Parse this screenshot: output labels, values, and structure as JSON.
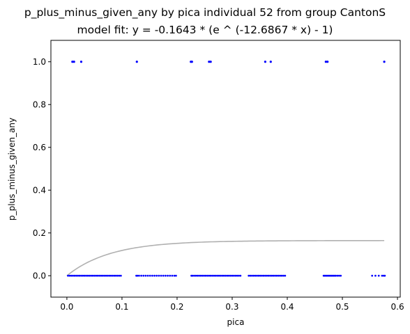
{
  "chart_data": {
    "type": "scatter",
    "title": "p_plus_minus_given_any by pica individual 52 from group CantonS",
    "subtitle": "model fit: y = -0.1643 * (e ^ (-12.6867 * x) - 1)",
    "xlabel": "pica",
    "ylabel": "p_plus_minus_given_any",
    "xlim": [
      -0.029,
      0.605
    ],
    "ylim": [
      -0.1,
      1.1
    ],
    "xticks": [
      0.0,
      0.1,
      0.2,
      0.3,
      0.4,
      0.5,
      0.6
    ],
    "xtick_labels": [
      "0.0",
      "0.1",
      "0.2",
      "0.3",
      "0.4",
      "0.5",
      "0.6"
    ],
    "yticks": [
      0.0,
      0.2,
      0.4,
      0.6,
      0.8,
      1.0
    ],
    "ytick_labels": [
      "0.0",
      "0.2",
      "0.4",
      "0.6",
      "0.8",
      "1.0"
    ],
    "grid": false,
    "point_color": "#0000ff",
    "fit_color": "#b0b0b0",
    "fit": {
      "a": 0.1643,
      "b": 12.6867,
      "x_range": [
        0.0,
        0.576
      ]
    },
    "series": [
      {
        "points_y1": [
          0.01,
          0.013,
          0.026,
          0.127,
          0.225,
          0.227,
          0.258,
          0.261,
          0.36,
          0.37,
          0.47,
          0.473,
          0.576
        ],
        "points_y0": [
          0.002,
          0.005,
          0.008,
          0.011,
          0.014,
          0.017,
          0.02,
          0.023,
          0.026,
          0.029,
          0.032,
          0.035,
          0.038,
          0.041,
          0.044,
          0.047,
          0.05,
          0.053,
          0.056,
          0.059,
          0.062,
          0.065,
          0.068,
          0.071,
          0.074,
          0.077,
          0.08,
          0.083,
          0.086,
          0.089,
          0.092,
          0.095,
          0.098,
          0.126,
          0.128,
          0.131,
          0.135,
          0.139,
          0.143,
          0.147,
          0.151,
          0.155,
          0.159,
          0.163,
          0.167,
          0.171,
          0.175,
          0.179,
          0.183,
          0.187,
          0.191,
          0.195,
          0.198,
          0.226,
          0.228,
          0.231,
          0.234,
          0.237,
          0.24,
          0.243,
          0.246,
          0.249,
          0.252,
          0.255,
          0.258,
          0.261,
          0.264,
          0.267,
          0.27,
          0.273,
          0.276,
          0.279,
          0.282,
          0.285,
          0.288,
          0.291,
          0.294,
          0.297,
          0.3,
          0.303,
          0.306,
          0.309,
          0.312,
          0.315,
          0.33,
          0.333,
          0.336,
          0.339,
          0.342,
          0.345,
          0.348,
          0.351,
          0.354,
          0.357,
          0.36,
          0.363,
          0.366,
          0.369,
          0.372,
          0.375,
          0.378,
          0.381,
          0.384,
          0.387,
          0.39,
          0.393,
          0.396,
          0.466,
          0.468,
          0.47,
          0.472,
          0.474,
          0.476,
          0.478,
          0.48,
          0.482,
          0.484,
          0.486,
          0.488,
          0.491,
          0.494,
          0.497,
          0.554,
          0.56,
          0.566,
          0.572,
          0.575,
          0.577
        ]
      }
    ]
  }
}
